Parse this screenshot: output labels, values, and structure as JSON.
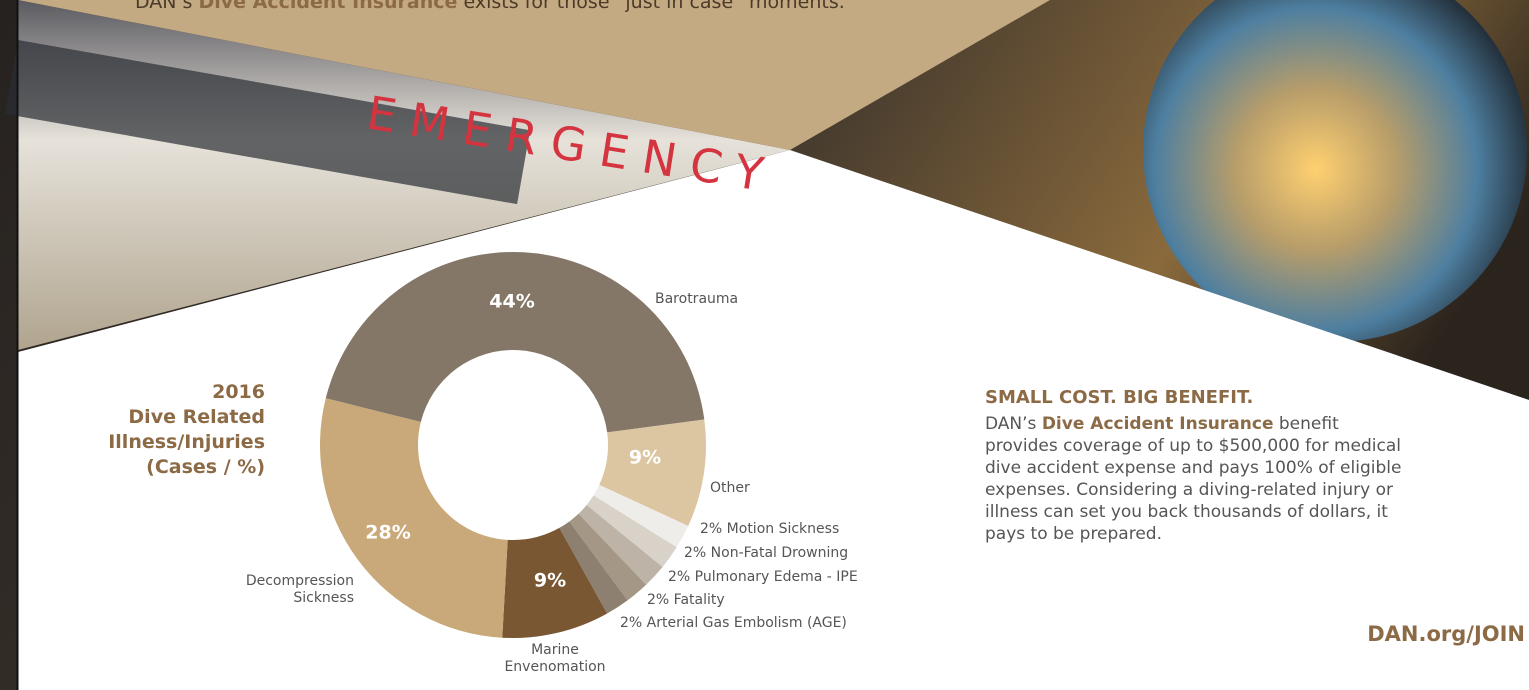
{
  "top_text": {
    "before": "DAN’s",
    "bold": "Dive Accident Insurance",
    "after": "exists for those “just in case” moments."
  },
  "photo_sign": "EMERGENCY",
  "side_heading": [
    "2016",
    "Dive Related",
    "Illness/Injuries",
    "(Cases / %)"
  ],
  "chart_data": {
    "type": "pie",
    "donut": true,
    "categories": [
      "Barotrauma",
      "Other",
      "Motion Sickness",
      "Non-Fatal Drowning",
      "Pulmonary Edema - IPE",
      "Fatality",
      "Arterial Gas Embolism (AGE)",
      "Marine Envenomation",
      "Decompression Sickness"
    ],
    "values": [
      44,
      9,
      2,
      2,
      2,
      2,
      2,
      9,
      28
    ],
    "value_labels": [
      "44%",
      "9%",
      "2%",
      "2%",
      "2%",
      "2%",
      "2%",
      "9%",
      "28%"
    ],
    "colors": [
      "#857767",
      "#dcc6a2",
      "#efedea",
      "#d8d2c9",
      "#bdb3a6",
      "#a49786",
      "#8e8070",
      "#7a5733",
      "#c9a979"
    ]
  },
  "benefit": {
    "heading": "SMALL COST. BIG BENEFIT.",
    "before": "DAN’s",
    "bold": "Dive Accident Insurance",
    "after": "benefit provides coverage of up to $500,000 for medical dive accident expense and pays 100% of eligible expenses. Considering a diving-related injury or illness can set you back thousands of dollars, it pays to be prepared."
  },
  "link": "DAN.org/JOIN"
}
